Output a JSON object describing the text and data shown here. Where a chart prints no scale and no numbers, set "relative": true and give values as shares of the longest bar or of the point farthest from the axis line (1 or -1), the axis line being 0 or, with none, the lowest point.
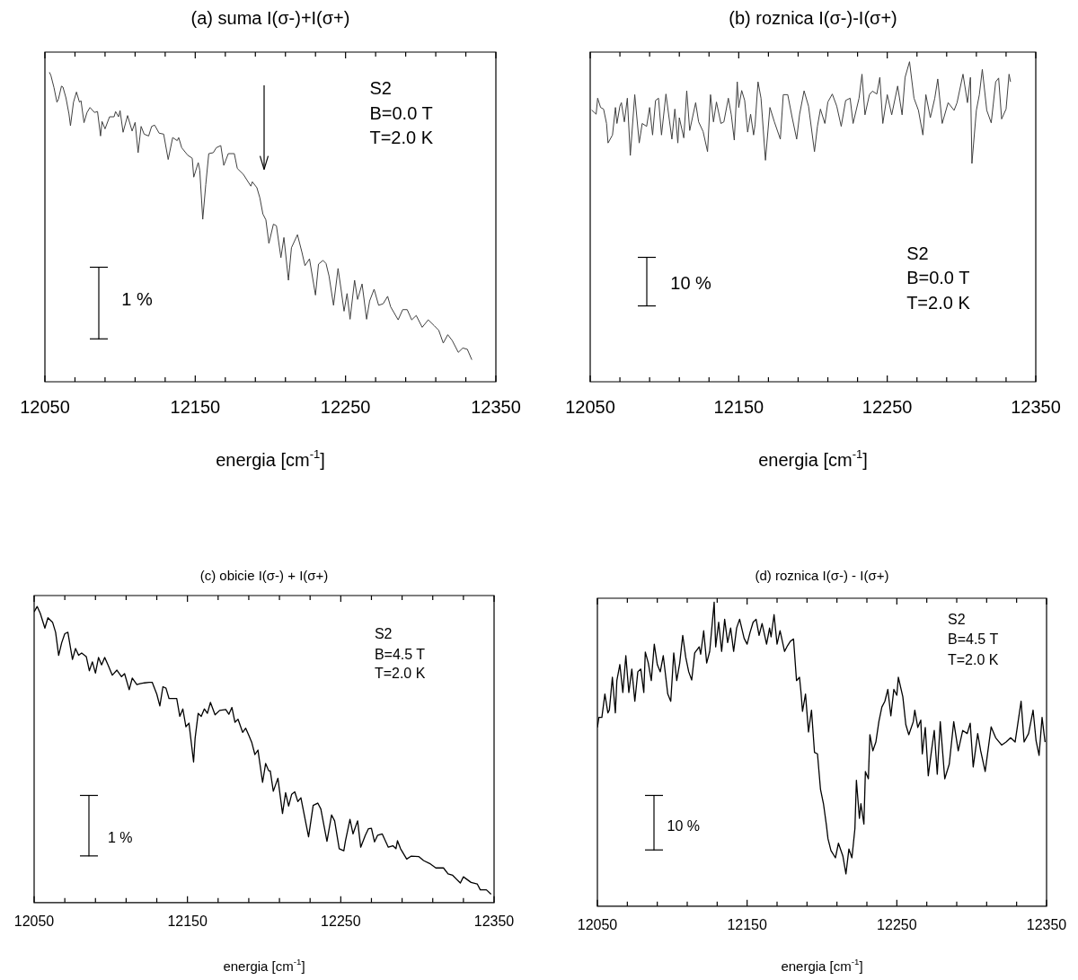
{
  "chart_data": [
    {
      "type": "line",
      "title": "(a) suma I(σ-)+I(σ+)",
      "xlabel": "energia [cm$^{-1}$]",
      "relative": true,
      "color": "#404040",
      "marker": "none",
      "xlim": [
        12050,
        12350
      ],
      "xticks": [
        12050,
        {
          "value": 12070,
          "label": null
        },
        {
          "value": 12090,
          "label": null
        },
        {
          "value": 12110,
          "label": null
        },
        {
          "value": 12130,
          "label": null
        },
        12150,
        {
          "value": 12170,
          "label": null
        },
        {
          "value": 12190,
          "label": null
        },
        {
          "value": 12210,
          "label": null
        },
        {
          "value": 12230,
          "label": null
        },
        12250,
        {
          "value": 12270,
          "label": null
        },
        {
          "value": 12290,
          "label": null
        },
        {
          "value": 12310,
          "label": null
        },
        {
          "value": 12330,
          "label": null
        },
        12350
      ],
      "annotations": [
        "S2",
        "B=0.0 T",
        "T=2.0 K",
        "1 %"
      ],
      "x": [
        12053,
        12054,
        12056,
        12058,
        12059,
        12061,
        12062,
        12064,
        12066,
        12067,
        12069,
        12071,
        12073,
        12074,
        12076,
        12078,
        12080,
        12083,
        12085,
        12087,
        12088,
        12090,
        12093,
        12096,
        12097,
        12099,
        12100,
        12102,
        12105,
        12108,
        12110,
        12112,
        12114,
        12116,
        12119,
        12121,
        12123,
        12126,
        12129,
        12132,
        12135,
        12138,
        12139,
        12141,
        12145,
        12148,
        12149,
        12152,
        12153,
        12155,
        12157,
        12159,
        12162,
        12164,
        12167,
        12169,
        12172,
        12176,
        12178,
        12182,
        12187,
        12188,
        12191,
        12193,
        12195,
        12197,
        12199,
        12202,
        12204,
        12207,
        12209,
        12212,
        12214,
        12218,
        12221,
        12223,
        12226,
        12230,
        12232,
        12235,
        12237,
        12239,
        12242,
        12245,
        12247,
        12249,
        12251,
        12253,
        12256,
        12258,
        12261,
        12264,
        12266,
        12269,
        12272,
        12275,
        12278,
        12280,
        12285,
        12288,
        12291,
        12294,
        12297,
        12301,
        12305,
        12309,
        12312,
        12315,
        12318,
        12321,
        12325,
        12328,
        12331,
        12334
      ],
      "values": [
        1.0,
        0.989,
        0.951,
        0.903,
        0.913,
        0.955,
        0.952,
        0.917,
        0.865,
        0.827,
        0.903,
        0.936,
        0.903,
        0.908,
        0.837,
        0.87,
        0.886,
        0.87,
        0.873,
        0.794,
        0.841,
        0.817,
        0.856,
        0.856,
        0.873,
        0.856,
        0.876,
        0.806,
        0.86,
        0.81,
        0.838,
        0.74,
        0.825,
        0.8,
        0.794,
        0.825,
        0.829,
        0.803,
        0.8,
        0.718,
        0.789,
        0.779,
        0.789,
        0.756,
        0.732,
        0.722,
        0.661,
        0.708,
        0.684,
        0.525,
        0.637,
        0.737,
        0.74,
        0.756,
        0.763,
        0.699,
        0.737,
        0.737,
        0.689,
        0.67,
        0.632,
        0.646,
        0.627,
        0.594,
        0.542,
        0.523,
        0.447,
        0.509,
        0.504,
        0.401,
        0.466,
        0.328,
        0.433,
        0.475,
        0.418,
        0.375,
        0.397,
        0.28,
        0.38,
        0.392,
        0.382,
        0.342,
        0.247,
        0.366,
        0.299,
        0.228,
        0.285,
        0.202,
        0.328,
        0.266,
        0.316,
        0.202,
        0.261,
        0.299,
        0.247,
        0.252,
        0.276,
        0.242,
        0.2,
        0.233,
        0.233,
        0.2,
        0.214,
        0.176,
        0.2,
        0.181,
        0.166,
        0.125,
        0.152,
        0.133,
        0.095,
        0.109,
        0.105,
        0.071
      ]
    },
    {
      "type": "line",
      "title": "(b) roznica I(σ-)-I(σ+)",
      "xlabel": "energia [cm$^{-1}$]",
      "relative": true,
      "color": "#404040",
      "marker": "none",
      "xlim": [
        12050,
        12350
      ],
      "xticks": [
        12050,
        {
          "value": 12070,
          "label": null
        },
        {
          "value": 12090,
          "label": null
        },
        {
          "value": 12110,
          "label": null
        },
        {
          "value": 12130,
          "label": null
        },
        12150,
        {
          "value": 12170,
          "label": null
        },
        {
          "value": 12190,
          "label": null
        },
        {
          "value": 12210,
          "label": null
        },
        {
          "value": 12230,
          "label": null
        },
        12250,
        {
          "value": 12270,
          "label": null
        },
        {
          "value": 12290,
          "label": null
        },
        {
          "value": 12310,
          "label": null
        },
        {
          "value": 12330,
          "label": null
        },
        12350
      ],
      "annotations": [
        "S2",
        "B=0.0 T",
        "T=2.0 K",
        "10 %"
      ],
      "x": [
        12051,
        12054,
        12055,
        12057,
        12059,
        12061,
        12062,
        12065,
        12067,
        12068,
        12070,
        12071,
        12073,
        12075,
        12077,
        12080,
        12083,
        12085,
        12088,
        12090,
        12092,
        12094,
        12096,
        12098,
        12101,
        12105,
        12107,
        12109,
        12110,
        12113,
        12115,
        12117,
        12121,
        12123,
        12126,
        12129,
        12131,
        12133,
        12135,
        12138,
        12140,
        12143,
        12145,
        12147,
        12149,
        12150,
        12152,
        12154,
        12156,
        12158,
        12160,
        12161,
        12163,
        12165,
        12168,
        12171,
        12174,
        12178,
        12180,
        12183,
        12186,
        12189,
        12191,
        12194,
        12197,
        12201,
        12203,
        12205,
        12208,
        12210,
        12213,
        12216,
        12219,
        12222,
        12225,
        12227,
        12231,
        12233,
        12235,
        12238,
        12240,
        12243,
        12245,
        12247,
        12250,
        12253,
        12257,
        12260,
        12262,
        12265,
        12268,
        12271,
        12274,
        12276,
        12279,
        12282,
        12284,
        12287,
        12291,
        12295,
        12297,
        12301,
        12304,
        12306,
        12307,
        12310,
        12312,
        12314,
        12317,
        12320,
        12323,
        12325,
        12327,
        12330,
        12332,
        12333
      ],
      "values": [
        0.849,
        0.836,
        0.886,
        0.857,
        0.852,
        0.807,
        0.746,
        0.771,
        0.857,
        0.807,
        0.861,
        0.872,
        0.812,
        0.886,
        0.707,
        0.897,
        0.746,
        0.807,
        0.798,
        0.857,
        0.771,
        0.879,
        0.886,
        0.771,
        0.899,
        0.758,
        0.852,
        0.746,
        0.825,
        0.762,
        0.909,
        0.785,
        0.872,
        0.812,
        0.782,
        0.719,
        0.897,
        0.812,
        0.874,
        0.807,
        0.812,
        0.886,
        0.834,
        0.755,
        0.937,
        0.857,
        0.91,
        0.879,
        0.78,
        0.836,
        0.771,
        0.803,
        0.937,
        0.886,
        0.692,
        0.857,
        0.812,
        0.758,
        0.897,
        0.897,
        0.825,
        0.758,
        0.836,
        0.909,
        0.861,
        0.719,
        0.798,
        0.852,
        0.807,
        0.874,
        0.899,
        0.861,
        0.798,
        0.879,
        0.886,
        0.807,
        0.886,
        0.961,
        0.834,
        0.897,
        0.908,
        0.899,
        0.951,
        0.807,
        0.897,
        0.834,
        0.924,
        0.834,
        0.951,
        1.0,
        0.886,
        0.848,
        0.771,
        0.897,
        0.825,
        0.886,
        0.946,
        0.807,
        0.872,
        0.848,
        0.872,
        0.961,
        0.872,
        0.951,
        0.682,
        0.848,
        0.897,
        0.976,
        0.848,
        0.809,
        0.937,
        0.949,
        0.821,
        0.852,
        0.961,
        0.937
      ]
    },
    {
      "type": "line",
      "title": "(c) obicie I(σ-) + I(σ+)",
      "xlabel": "energia [cm$^{-1}$]",
      "relative": true,
      "color": "#000000",
      "marker": "none",
      "xlim": [
        12050,
        12350
      ],
      "xticks": [
        12050,
        {
          "value": 12070,
          "label": null
        },
        {
          "value": 12090,
          "label": null
        },
        {
          "value": 12110,
          "label": null
        },
        {
          "value": 12130,
          "label": null
        },
        12150,
        {
          "value": 12170,
          "label": null
        },
        {
          "value": 12190,
          "label": null
        },
        {
          "value": 12210,
          "label": null
        },
        {
          "value": 12230,
          "label": null
        },
        12250,
        {
          "value": 12270,
          "label": null
        },
        {
          "value": 12290,
          "label": null
        },
        {
          "value": 12310,
          "label": null
        },
        {
          "value": 12330,
          "label": null
        },
        12350
      ],
      "annotations": [
        "S2",
        "B=4.5 T",
        "T=2.0 K",
        "1 %"
      ],
      "x": [
        12050,
        12052,
        12054,
        12057,
        12059,
        12062,
        12064,
        12066,
        12068,
        12070,
        12072,
        12075,
        12077,
        12079,
        12081,
        12084,
        12086,
        12088,
        12090,
        12092,
        12094,
        12096,
        12098,
        12101,
        12104,
        12107,
        12109,
        12112,
        12114,
        12117,
        12119,
        12122,
        12125,
        12127,
        12130,
        12132,
        12134,
        12136,
        12138,
        12141,
        12143,
        12145,
        12147,
        12149,
        12151,
        12154,
        12155,
        12157,
        12159,
        12161,
        12163,
        12165,
        12168,
        12171,
        12175,
        12177,
        12179,
        12181,
        12183,
        12186,
        12188,
        12190,
        12192,
        12194,
        12196,
        12199,
        12201,
        12203,
        12204,
        12206,
        12209,
        12212,
        12214,
        12216,
        12218,
        12220,
        12222,
        12224,
        12229,
        12232,
        12235,
        12237,
        12241,
        12244,
        12246,
        12249,
        12252,
        12253,
        12256,
        12258,
        12261,
        12263,
        12266,
        12268,
        12270,
        12272,
        12274,
        12277,
        12281,
        12284,
        12286,
        12287,
        12289,
        12293,
        12296,
        12301,
        12304,
        12308,
        12312,
        12317,
        12320,
        12323,
        12328,
        12330,
        12335,
        12339,
        12341,
        12345,
        12348
      ],
      "values": [
        0.982,
        1.0,
        0.977,
        0.927,
        0.962,
        0.947,
        0.913,
        0.835,
        0.878,
        0.908,
        0.913,
        0.821,
        0.858,
        0.835,
        0.843,
        0.831,
        0.783,
        0.813,
        0.775,
        0.828,
        0.803,
        0.828,
        0.805,
        0.768,
        0.785,
        0.763,
        0.773,
        0.719,
        0.758,
        0.736,
        0.739,
        0.742,
        0.744,
        0.744,
        0.704,
        0.664,
        0.729,
        0.724,
        0.689,
        0.689,
        0.689,
        0.629,
        0.654,
        0.594,
        0.606,
        0.475,
        0.555,
        0.639,
        0.629,
        0.654,
        0.639,
        0.676,
        0.634,
        0.649,
        0.652,
        0.636,
        0.659,
        0.609,
        0.619,
        0.575,
        0.589,
        0.565,
        0.54,
        0.5,
        0.515,
        0.406,
        0.47,
        0.445,
        0.445,
        0.376,
        0.42,
        0.301,
        0.371,
        0.326,
        0.366,
        0.374,
        0.341,
        0.354,
        0.222,
        0.328,
        0.336,
        0.316,
        0.207,
        0.296,
        0.276,
        0.182,
        0.175,
        0.207,
        0.281,
        0.232,
        0.276,
        0.187,
        0.227,
        0.249,
        0.251,
        0.205,
        0.227,
        0.232,
        0.187,
        0.192,
        0.182,
        0.209,
        0.182,
        0.147,
        0.157,
        0.155,
        0.142,
        0.132,
        0.117,
        0.117,
        0.097,
        0.092,
        0.066,
        0.087,
        0.068,
        0.063,
        0.043,
        0.043,
        0.028
      ]
    },
    {
      "type": "line",
      "title": "(d) roznica I(σ-) - I(σ+)",
      "xlabel": "energia [cm$^{-1}$]",
      "relative": true,
      "color": "#000000",
      "marker": "none",
      "xlim": [
        12050,
        12350
      ],
      "xticks": [
        12050,
        {
          "value": 12070,
          "label": null
        },
        {
          "value": 12090,
          "label": null
        },
        {
          "value": 12110,
          "label": null
        },
        {
          "value": 12130,
          "label": null
        },
        12150,
        {
          "value": 12170,
          "label": null
        },
        {
          "value": 12190,
          "label": null
        },
        {
          "value": 12210,
          "label": null
        },
        {
          "value": 12230,
          "label": null
        },
        12250,
        {
          "value": 12270,
          "label": null
        },
        {
          "value": 12290,
          "label": null
        },
        {
          "value": 12310,
          "label": null
        },
        {
          "value": 12330,
          "label": null
        },
        12350
      ],
      "annotations": [
        "S2",
        "B=4.5 T",
        "T=2.0 K",
        "10 %"
      ],
      "x": [
        12050,
        12051,
        12053,
        12055,
        12057,
        12058,
        12060,
        12062,
        12063,
        12065,
        12067,
        12069,
        12071,
        12073,
        12075,
        12077,
        12079,
        12081,
        12082,
        12084,
        12086,
        12088,
        12090,
        12092,
        12094,
        12097,
        12099,
        12101,
        12103,
        12105,
        12107,
        12109,
        12111,
        12113,
        12115,
        12118,
        12119,
        12121,
        12123,
        12125,
        12128,
        12129,
        12131,
        12133,
        12135,
        12137,
        12139,
        12141,
        12143,
        12145,
        12148,
        12150,
        12152,
        12154,
        12156,
        12158,
        12160,
        12163,
        12165,
        12166,
        12168,
        12170,
        12172,
        12175,
        12177,
        12179,
        12181,
        12183,
        12185,
        12186,
        12187,
        12189,
        12191,
        12193,
        12195,
        12197,
        12199,
        12201,
        12203,
        12204,
        12206,
        12209,
        12211,
        12214,
        12216,
        12218,
        12220,
        12222,
        12223,
        12225,
        12226,
        12228,
        12229,
        12231,
        12232,
        12234,
        12236,
        12238,
        12240,
        12242,
        12244,
        12246,
        12248,
        12250,
        12251,
        12254,
        12256,
        12258,
        12261,
        12262,
        12264,
        12266,
        12267,
        12269,
        12271,
        12273,
        12275,
        12277,
        12279,
        12282,
        12285,
        12288,
        12291,
        12294,
        12297,
        12299,
        12301,
        12304,
        12306,
        12309,
        12313,
        12316,
        12320,
        12323,
        12326,
        12329,
        12333,
        12335,
        12338,
        12341,
        12343,
        12345,
        12347,
        12349
      ],
      "values": [
        0.588,
        0.621,
        0.621,
        0.698,
        0.636,
        0.645,
        0.753,
        0.636,
        0.742,
        0.795,
        0.703,
        0.824,
        0.703,
        0.78,
        0.674,
        0.771,
        0.78,
        0.703,
        0.836,
        0.8,
        0.742,
        0.862,
        0.795,
        0.771,
        0.824,
        0.698,
        0.674,
        0.833,
        0.742,
        0.8,
        0.891,
        0.819,
        0.771,
        0.744,
        0.833,
        0.853,
        0.829,
        0.906,
        0.8,
        0.838,
        1.0,
        0.853,
        0.934,
        0.838,
        0.944,
        0.867,
        0.915,
        0.838,
        0.915,
        0.944,
        0.881,
        0.862,
        0.901,
        0.934,
        0.944,
        0.891,
        0.93,
        0.862,
        0.915,
        0.886,
        0.959,
        0.862,
        0.906,
        0.838,
        0.857,
        0.872,
        0.879,
        0.742,
        0.753,
        0.703,
        0.641,
        0.698,
        0.573,
        0.645,
        0.506,
        0.501,
        0.385,
        0.337,
        0.265,
        0.222,
        0.183,
        0.159,
        0.207,
        0.164,
        0.106,
        0.188,
        0.159,
        0.255,
        0.414,
        0.289,
        0.337,
        0.27,
        0.443,
        0.419,
        0.564,
        0.511,
        0.54,
        0.607,
        0.655,
        0.674,
        0.713,
        0.626,
        0.713,
        0.694,
        0.753,
        0.689,
        0.597,
        0.564,
        0.607,
        0.645,
        0.588,
        0.612,
        0.501,
        0.588,
        0.429,
        0.506,
        0.578,
        0.434,
        0.607,
        0.419,
        0.467,
        0.607,
        0.511,
        0.578,
        0.568,
        0.602,
        0.458,
        0.568,
        0.511,
        0.443,
        0.59,
        0.554,
        0.53,
        0.54,
        0.554,
        0.54,
        0.674,
        0.54,
        0.568,
        0.645,
        0.544,
        0.496,
        0.621,
        0.54
      ]
    }
  ]
}
